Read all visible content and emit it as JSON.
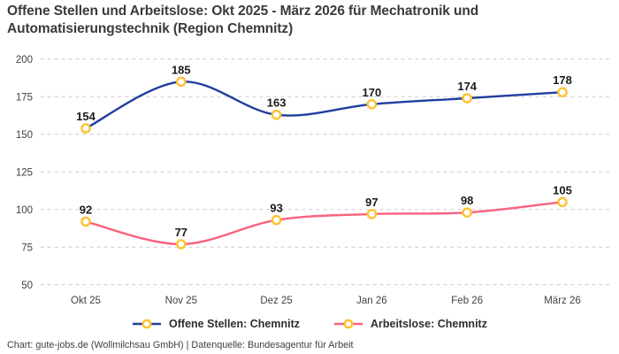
{
  "title": {
    "line1": "Offene Stellen und Arbeitslose: Okt 2025 - März 2026 für Mechatronik und",
    "line2": "Automatisierungstechnik (Region Chemnitz)"
  },
  "footer": "Chart: gute-jobs.de (Wollmilchsau GmbH) | Datenquelle: Bundesagentur für Arbeit",
  "chart_data": {
    "type": "line",
    "categories": [
      "Okt 25",
      "Nov 25",
      "Dez 25",
      "Jan 26",
      "Feb 26",
      "März 26"
    ],
    "series": [
      {
        "name": "Offene Stellen: Chemnitz",
        "values": [
          154,
          185,
          163,
          170,
          174,
          178
        ],
        "color": "#203da0"
      },
      {
        "name": "Arbeitslose: Chemnitz",
        "values": [
          92,
          77,
          93,
          97,
          98,
          105
        ],
        "color": "#f9617c"
      }
    ],
    "marker": {
      "fill": "#ffffff",
      "stroke": "#fdc231"
    },
    "y_ticks": [
      50,
      75,
      100,
      125,
      150,
      175,
      200
    ],
    "ylim": [
      50,
      200
    ],
    "grid": "dashed-horizontal",
    "grid_color": "#cbcbcb",
    "legend_position": "bottom",
    "curve": "smooth",
    "data_labels": true
  }
}
